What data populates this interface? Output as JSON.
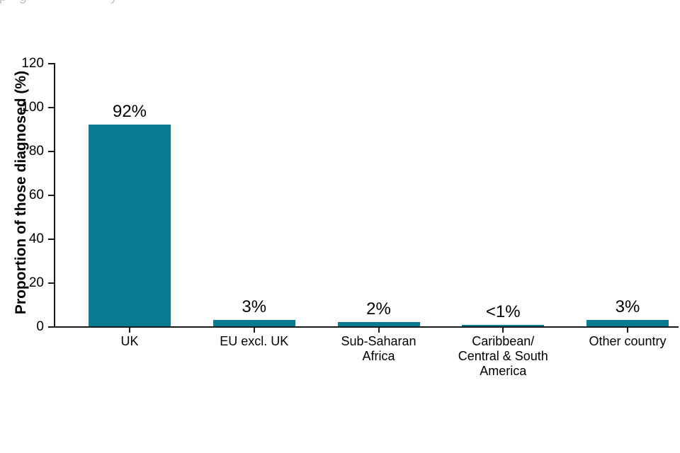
{
  "page": {
    "background": "#ffffff",
    "cropped_text_fragments": [
      "p",
      "g",
      "y"
    ]
  },
  "chart_data": {
    "type": "bar",
    "title": "",
    "categories": [
      "UK",
      "EU excl. UK",
      "Sub-Saharan\nAfrica",
      "Caribbean/\nCentral & South\nAmerica",
      "Other country"
    ],
    "values": [
      92,
      3,
      2,
      0.6,
      3
    ],
    "data_labels": [
      "92%",
      "3%",
      "2%",
      "<1%",
      "3%"
    ],
    "xlabel": "",
    "ylabel": "Proportion of those diagnosed (%)",
    "ylim": [
      0,
      120
    ],
    "yticks": [
      0,
      20,
      40,
      60,
      80,
      100,
      120
    ],
    "bar_color": "#087d91",
    "axis_color": "#1a1a1a",
    "text_color": "#000000",
    "grid": false,
    "legend": "none"
  }
}
